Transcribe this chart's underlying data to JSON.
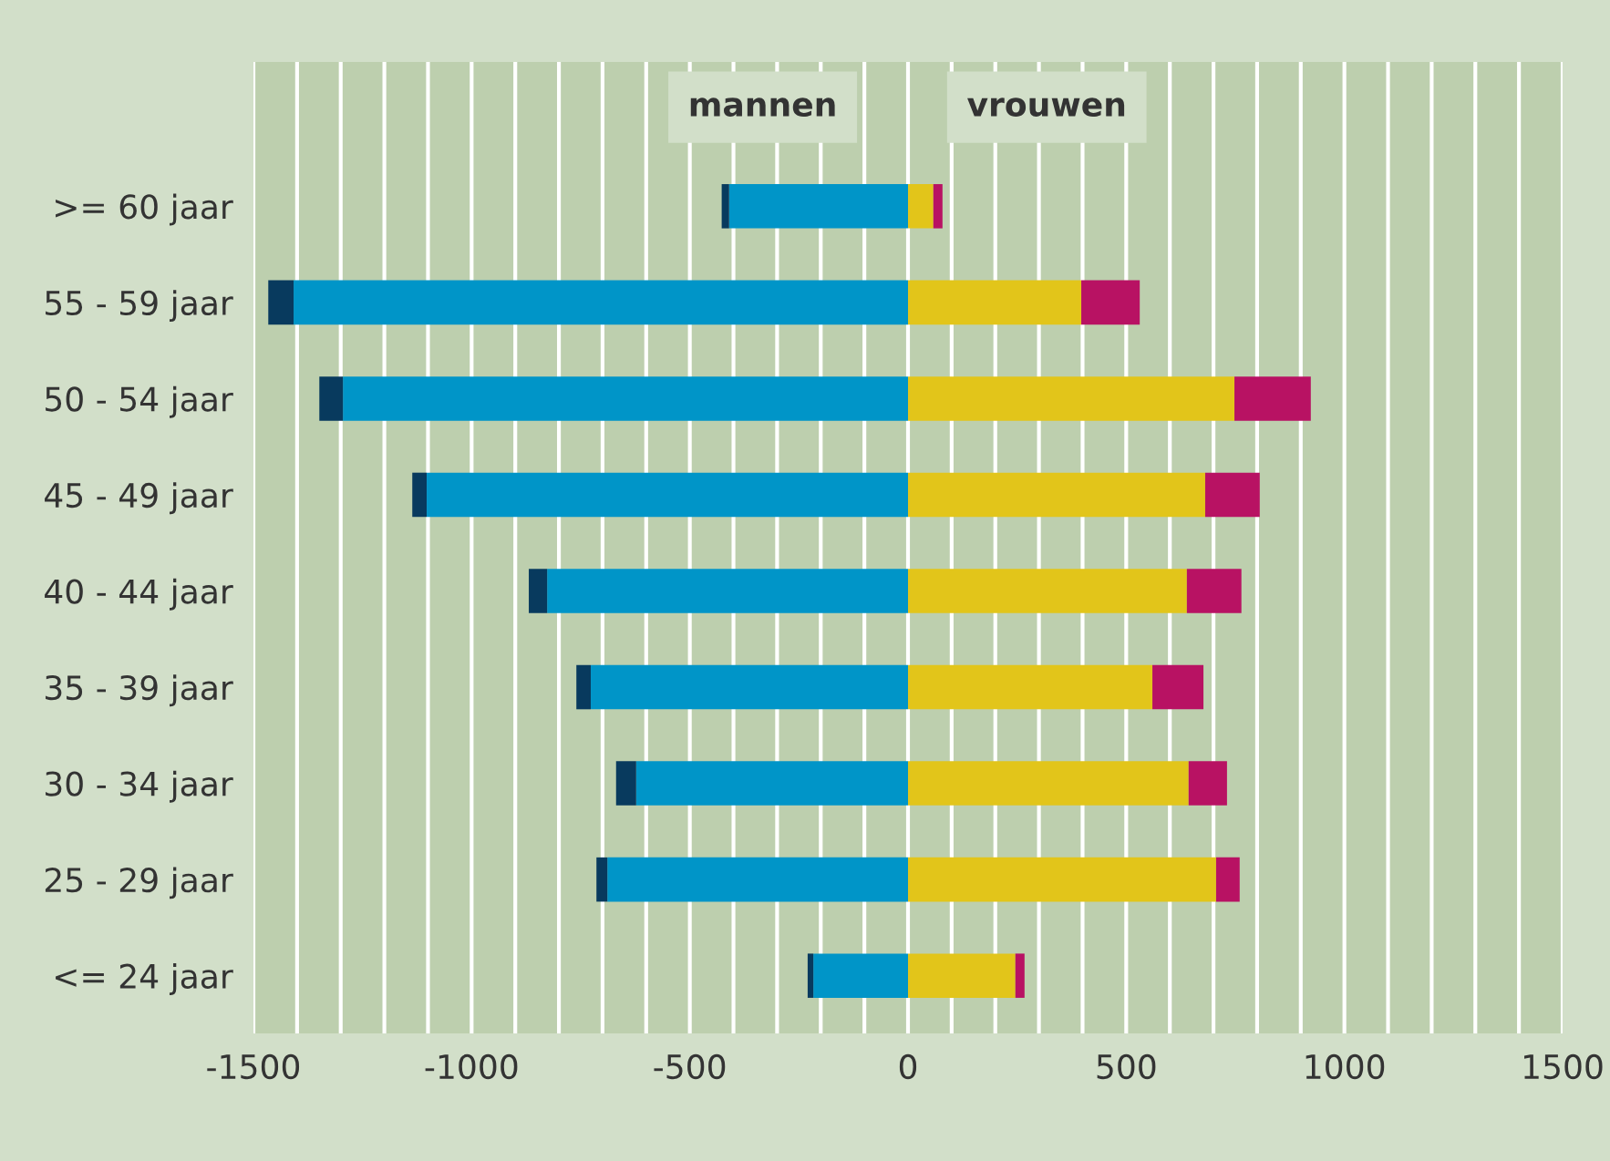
{
  "chart_data": {
    "type": "bar",
    "orientation": "horizontal",
    "stacked": true,
    "categories": [
      ">= 60 jaar",
      "55 - 59 jaar",
      "50 - 54 jaar",
      "45 - 49 jaar",
      "40 - 44 jaar",
      "35 - 39 jaar",
      "30 - 34 jaar",
      "25 - 29 jaar",
      "<= 24 jaar"
    ],
    "series": [
      {
        "color": "#0095c8",
        "values": [
          -410,
          -1408,
          -1295,
          -1103,
          -827,
          -727,
          -623,
          -689,
          -217
        ]
      },
      {
        "color": "#083a5e",
        "values": [
          -17,
          -58,
          -54,
          -33,
          -42,
          -33,
          -46,
          -25,
          -13
        ]
      },
      {
        "color": "#e2c51a",
        "values": [
          58,
          397,
          748,
          681,
          639,
          560,
          643,
          706,
          246
        ]
      },
      {
        "color": "#b81263",
        "values": [
          21,
          134,
          175,
          125,
          125,
          117,
          88,
          54,
          21
        ]
      }
    ],
    "xlim": [
      -1500,
      1500
    ],
    "xticks": [
      -1500,
      {
        "value": -1400,
        "label": null
      },
      {
        "value": -1300,
        "label": null
      },
      {
        "value": -1200,
        "label": null
      },
      {
        "value": -1100,
        "label": null
      },
      -1000,
      {
        "value": -900,
        "label": null
      },
      {
        "value": -800,
        "label": null
      },
      {
        "value": -700,
        "label": null
      },
      {
        "value": -600,
        "label": null
      },
      -500,
      {
        "value": -400,
        "label": null
      },
      {
        "value": -300,
        "label": null
      },
      {
        "value": -200,
        "label": null
      },
      {
        "value": -100,
        "label": null
      },
      0,
      {
        "value": 100,
        "label": null
      },
      {
        "value": 200,
        "label": null
      },
      {
        "value": 300,
        "label": null
      },
      {
        "value": 400,
        "label": null
      },
      500,
      {
        "value": 600,
        "label": null
      },
      {
        "value": 700,
        "label": null
      },
      {
        "value": 800,
        "label": null
      },
      {
        "value": 900,
        "label": null
      },
      1000,
      {
        "value": 1100,
        "label": null
      },
      {
        "value": 1200,
        "label": null
      },
      {
        "value": 1300,
        "label": null
      },
      {
        "value": 1400,
        "label": null
      },
      1500
    ],
    "grid": "x",
    "annotations": [
      "mannen",
      "vrouwen"
    ]
  }
}
